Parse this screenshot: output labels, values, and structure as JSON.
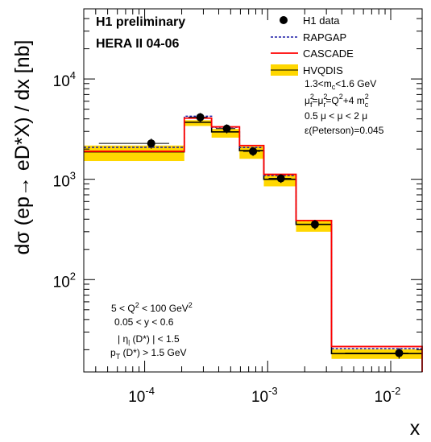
{
  "header": {
    "line1": "H1 preliminary",
    "line2": "HERA II 04-06"
  },
  "legend": {
    "items": [
      {
        "label": "H1 data",
        "style": "marker",
        "color": "#000000"
      },
      {
        "label": "RAPGAP",
        "style": "dashed",
        "color": "#1a1aa6"
      },
      {
        "label": "CASCADE",
        "style": "solid",
        "color": "#ff0000"
      },
      {
        "label": "HVQDIS",
        "style": "band",
        "color": "#ffd700"
      }
    ],
    "params": [
      "1.3<m_c<1.6 GeV",
      "μ_f^2=μ_r^2=Q^2+4 m_c^2",
      "0.5 μ < μ < 2 μ",
      "ε(Peterson)=0.045"
    ]
  },
  "cuts": [
    "5 < Q^2 < 100 GeV^2",
    "0.05 < y < 0.6",
    "| η (D*) | < 1.5",
    "p_T (D*) > 1.5 GeV"
  ],
  "colors": {
    "data": "#000000",
    "rapgap": "#1a1aa6",
    "cascade": "#ff0000",
    "hvqdis_band": "#ffd700",
    "hvqdis_central": "#000000"
  },
  "chart_data": {
    "type": "step",
    "ylabel": "dσ (ep→ eD*X) / dx [nb]",
    "xlabel": "x",
    "xscale": "log",
    "yscale": "log",
    "xlim": [
      3.2e-05,
      0.018
    ],
    "ylim": [
      12,
      50000
    ],
    "x_ticks": [
      {
        "value": 0.0001,
        "base": "10",
        "exp": "-4"
      },
      {
        "value": 0.001,
        "base": "10",
        "exp": "-3"
      },
      {
        "value": 0.01,
        "base": "10",
        "exp": "-2"
      }
    ],
    "y_ticks": [
      {
        "value": 100,
        "base": "10",
        "exp": "2"
      },
      {
        "value": 1000,
        "base": "10",
        "exp": "3"
      },
      {
        "value": 10000,
        "base": "10",
        "exp": "4"
      }
    ],
    "bin_edges": [
      3.2e-05,
      0.00021,
      0.00035,
      0.00059,
      0.00093,
      0.0017,
      0.0033,
      0.018
    ],
    "series": [
      {
        "name": "H1 data",
        "x": [
          0.000113,
          0.000283,
          0.000465,
          0.00076,
          0.00128,
          0.00242,
          0.0117
        ],
        "y": [
          2280,
          4150,
          3200,
          1900,
          1020,
          355,
          18.5
        ],
        "yerr": [
          260,
          430,
          330,
          190,
          100,
          38,
          2.2
        ]
      },
      {
        "name": "RAPGAP",
        "values": [
          2080,
          4250,
          3300,
          2070,
          1090,
          388,
          20.5
        ]
      },
      {
        "name": "CASCADE",
        "values": [
          1900,
          4070,
          3330,
          2170,
          1120,
          388,
          21.5
        ]
      },
      {
        "name": "HVQDIS",
        "values": [
          1880,
          3700,
          2970,
          1930,
          1000,
          355,
          18.3
        ],
        "band_low": [
          1520,
          3400,
          2600,
          1600,
          850,
          300,
          16.2
        ],
        "band_high": [
          2170,
          3880,
          3170,
          2130,
          1120,
          390,
          20.2
        ]
      }
    ]
  }
}
